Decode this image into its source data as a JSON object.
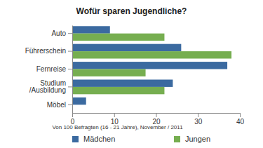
{
  "chart_data": {
    "type": "bar",
    "orientation": "horizontal",
    "title": "Wofür sparen Jugendliche?",
    "xlabel": "Von 100 Befragten (16 - 21 Jahre), November / 2011",
    "categories": [
      "Auto",
      "Führerschein",
      "Fernreise",
      "Studium /Ausbildung",
      "Möbel"
    ],
    "series": [
      {
        "name": "Mädchen",
        "color": "#3b6aa0",
        "values": [
          9,
          26,
          37,
          24,
          3.3
        ]
      },
      {
        "name": "Jungen",
        "color": "#76ae50",
        "values": [
          22,
          38,
          17.5,
          22,
          0
        ]
      }
    ],
    "xlim": [
      0,
      40
    ],
    "xticks": [
      0,
      10,
      20,
      30,
      40
    ],
    "grid": false,
    "legend": "bottom"
  }
}
